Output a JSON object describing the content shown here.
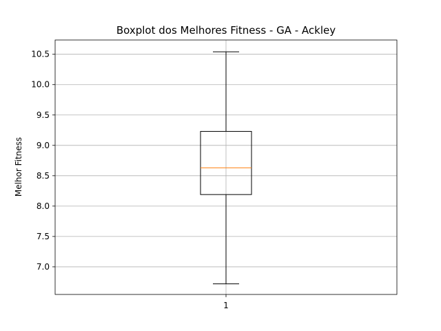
{
  "chart_data": {
    "type": "boxplot",
    "title": "Boxplot dos Melhores Fitness - GA - Ackley",
    "xlabel": "",
    "ylabel": "Melhor Fitness",
    "ylim": [
      6.545,
      10.735
    ],
    "yticks": [
      7.0,
      7.5,
      8.0,
      8.5,
      9.0,
      9.5,
      10.0,
      10.5
    ],
    "ytick_labels": [
      "7.0",
      "7.5",
      "8.0",
      "8.5",
      "9.0",
      "9.5",
      "10.0",
      "10.5"
    ],
    "categories": [
      "1"
    ],
    "grid": true,
    "boxes": [
      {
        "category": "1",
        "whisker_low": 6.72,
        "q1": 8.19,
        "median": 8.63,
        "q3": 9.23,
        "whisker_high": 10.54
      }
    ],
    "colors": {
      "box": "#000000",
      "median": "#ff7f0e",
      "grid": "#b0b0b0"
    }
  }
}
